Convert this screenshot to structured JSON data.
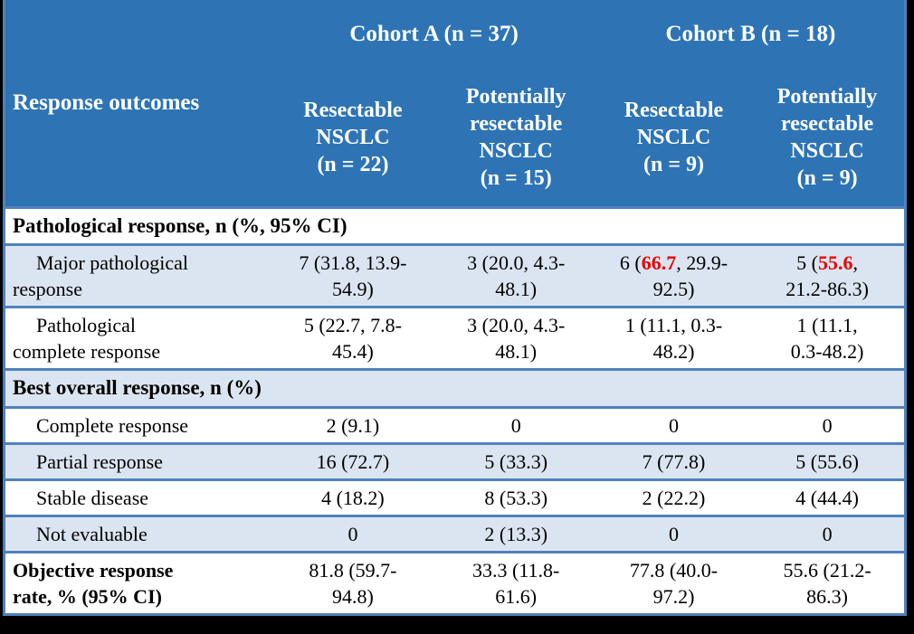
{
  "colors": {
    "canvas_bg": "#000000",
    "header_bg": "#2e74b5",
    "header_text": "#ffffff",
    "border_blue": "#4f81bd",
    "band_blue": "#dbe5f1",
    "body_text": "#000000",
    "highlight_red": "#ee0000"
  },
  "header": {
    "row_label": "Response outcomes",
    "cohorts": [
      {
        "label": "Cohort A (n = 37)"
      },
      {
        "label": "Cohort B (n = 18)"
      }
    ],
    "columns": [
      "Resectable\nNSCLC\n(n = 22)",
      "Potentially\nresectable\nNSCLC\n(n = 15)",
      "Resectable\nNSCLC\n(n = 9)",
      "Potentially\nresectable\nNSCLC\n(n = 9)"
    ]
  },
  "rows": [
    {
      "type": "section",
      "shaded": false,
      "label": "Pathological response, n (%, 95% CI)"
    },
    {
      "type": "data",
      "shaded": true,
      "indent": true,
      "bold": false,
      "label": "Major pathological\nresponse",
      "cells": [
        [
          "7 (31.8, 13.9-\n54.9)"
        ],
        [
          "3 (20.0, 4.3-\n48.1)"
        ],
        [
          "6 (",
          {
            "text": "66.7",
            "highlight": true
          },
          ", 29.9-\n92.5)"
        ],
        [
          "5 (",
          {
            "text": "55.6",
            "highlight": true
          },
          ",\n21.2-86.3)"
        ]
      ]
    },
    {
      "type": "data",
      "shaded": false,
      "indent": true,
      "bold": false,
      "label": "Pathological\ncomplete response",
      "cells": [
        [
          "5 (22.7, 7.8-\n45.4)"
        ],
        [
          "3 (20.0, 4.3-\n48.1)"
        ],
        [
          "1 (11.1, 0.3-\n48.2)"
        ],
        [
          "1 (11.1,\n0.3-48.2)"
        ]
      ]
    },
    {
      "type": "section",
      "shaded": true,
      "label": "Best overall response, n (%)"
    },
    {
      "type": "data",
      "shaded": false,
      "indent": true,
      "bold": false,
      "label": "Complete response",
      "cells": [
        [
          "2 (9.1)"
        ],
        [
          "0"
        ],
        [
          "0"
        ],
        [
          "0"
        ]
      ]
    },
    {
      "type": "data",
      "shaded": true,
      "indent": true,
      "bold": false,
      "label": "Partial response",
      "cells": [
        [
          "16 (72.7)"
        ],
        [
          "5 (33.3)"
        ],
        [
          "7 (77.8)"
        ],
        [
          "5 (55.6)"
        ]
      ]
    },
    {
      "type": "data",
      "shaded": false,
      "indent": true,
      "bold": false,
      "label": "Stable disease",
      "cells": [
        [
          "4 (18.2)"
        ],
        [
          "8 (53.3)"
        ],
        [
          "2 (22.2)"
        ],
        [
          "4 (44.4)"
        ]
      ]
    },
    {
      "type": "data",
      "shaded": true,
      "indent": true,
      "bold": false,
      "label": "Not evaluable",
      "cells": [
        [
          "0"
        ],
        [
          "2 (13.3)"
        ],
        [
          "0"
        ],
        [
          "0"
        ]
      ]
    },
    {
      "type": "data",
      "shaded": false,
      "indent": false,
      "bold": true,
      "label": "Objective response\nrate, % (95% CI)",
      "cells": [
        [
          "81.8 (59.7-\n94.8)"
        ],
        [
          "33.3 (11.8-\n61.6)"
        ],
        [
          "77.8 (40.0-\n97.2)"
        ],
        [
          "55.6 (21.2-\n86.3)"
        ]
      ]
    }
  ]
}
